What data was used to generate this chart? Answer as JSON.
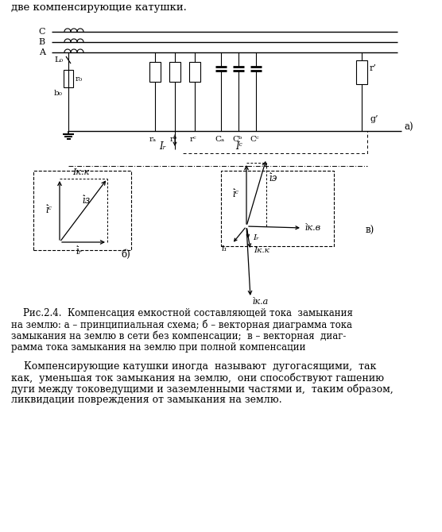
{
  "bg_color": "#ffffff",
  "header_text": "две компенсирующие катушки.",
  "caption": "    Рис.2.4.  Компенсация емкостной составляющей тока  замыкания\nна землю: а – принципиальная схема; б – векторная диаграмма тока\nзамыкания на землю в сети без компенсации;  в – векторная  диаг-\nрамма тока замыкания на землю при полной компенсации",
  "body_text": "    Компенсирующие катушки иногда  называют  дугогасящими,  так\nкак,  уменьшая ток замыкания на землю,  они способствуют гашению\nдуги между токоведущими и заземленными частями и,  таким образом,\nликвидации повреждения от замыкания на землю."
}
